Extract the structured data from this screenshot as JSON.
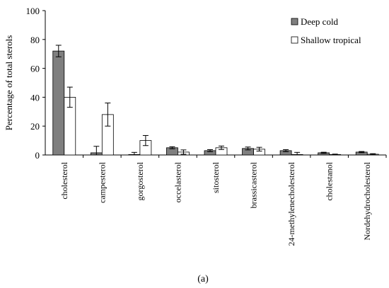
{
  "chart_data": {
    "type": "bar",
    "title": "",
    "xlabel": "",
    "ylabel": "Percentage of total sterols",
    "ylim": [
      0,
      100
    ],
    "yticks": [
      0,
      20,
      40,
      60,
      80,
      100
    ],
    "categories": [
      "cholesterol",
      "campesterol",
      "gorgosterol",
      "occelasterol",
      "sitosterol",
      "brassicasterol",
      "24-methylenecholesterol",
      "cholestanol",
      "Nordehydrocholesterol"
    ],
    "series": [
      {
        "name": "Deep cold",
        "color": "#7f7f7f",
        "values": [
          72,
          1.5,
          0.3,
          5,
          3,
          4.5,
          3,
          1.5,
          2
        ],
        "errors": [
          4,
          4.5,
          1.5,
          0.7,
          0.7,
          1,
          0.7,
          0.4,
          0.4
        ]
      },
      {
        "name": "Shallow tropical",
        "color": "#ffffff",
        "values": [
          40,
          28,
          10,
          2,
          5,
          4,
          0.3,
          0.3,
          0.5
        ],
        "errors": [
          7,
          8,
          3.5,
          1.5,
          1.2,
          1.3,
          1.5,
          0.3,
          0.4
        ]
      }
    ],
    "legend_position": "top-right",
    "grid": false
  },
  "caption": "(a)"
}
